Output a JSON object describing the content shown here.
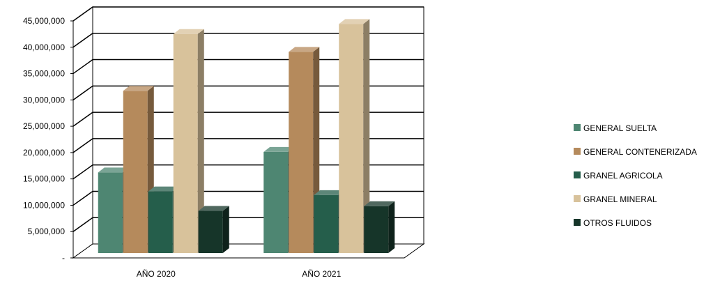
{
  "chart_data": {
    "type": "bar",
    "three_d": true,
    "categories": [
      "AÑO 2020",
      "AÑO 2021"
    ],
    "series": [
      {
        "name": "GENERAL SUELTA",
        "values": [
          15300000,
          19200000
        ],
        "color": "#4E8672"
      },
      {
        "name": "GENERAL CONTENERIZADA",
        "values": [
          30800000,
          38200000
        ],
        "color": "#B58A5C"
      },
      {
        "name": "GRANEL AGRICOLA",
        "values": [
          11700000,
          11000000
        ],
        "color": "#255E4B"
      },
      {
        "name": "GRANEL MINERAL",
        "values": [
          41600000,
          43500000
        ],
        "color": "#D8C29B"
      },
      {
        "name": "OTROS FLUIDOS",
        "values": [
          8000000,
          8900000
        ],
        "color": "#163529"
      }
    ],
    "y_ticks": [
      "-",
      "5,000,000",
      "10,000,000",
      "15,000,000",
      "20,000,000",
      "25,000,000",
      "30,000,000",
      "35,000,000",
      "40,000,000",
      "45,000,000"
    ],
    "ylim": [
      0,
      45000000
    ],
    "grid": true,
    "legend_position": "right"
  }
}
